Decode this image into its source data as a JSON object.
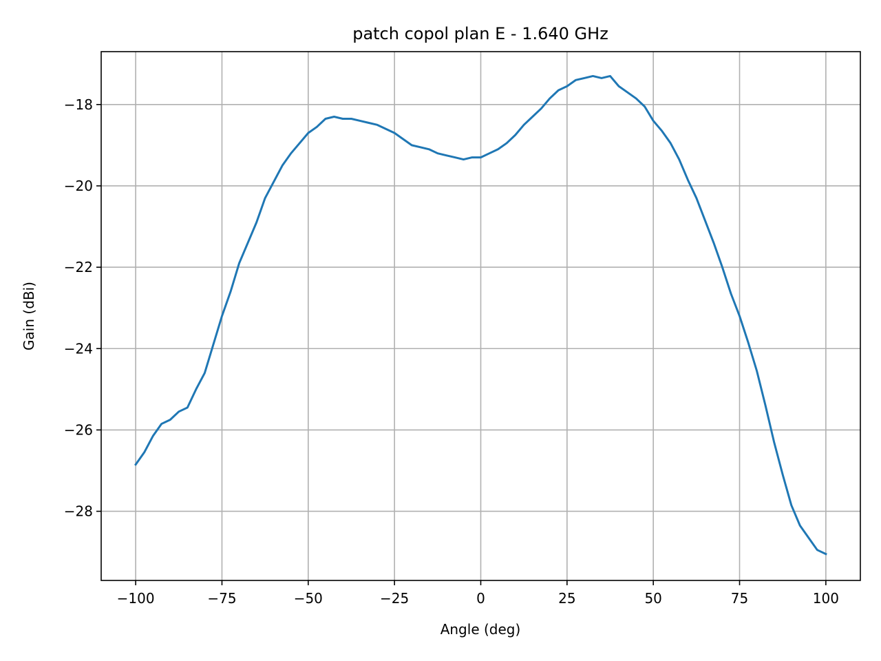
{
  "chart_data": {
    "type": "line",
    "title": "patch copol plan E - 1.640 GHz",
    "xlabel": "Angle (deg)",
    "ylabel": "Gain (dBi)",
    "xlim": [
      -110,
      110
    ],
    "ylim": [
      -29.7,
      -16.7
    ],
    "xticks": [
      -100,
      -75,
      -50,
      -25,
      0,
      25,
      50,
      75,
      100
    ],
    "xtick_labels": [
      "−100",
      "−75",
      "−50",
      "−25",
      "0",
      "25",
      "50",
      "75",
      "100"
    ],
    "yticks": [
      -28,
      -26,
      -24,
      -22,
      -20,
      -18
    ],
    "ytick_labels": [
      "−28",
      "−26",
      "−24",
      "−22",
      "−20",
      "−18"
    ],
    "grid": true,
    "line_color": "#1f77b4",
    "series": [
      {
        "x": [
          -100,
          -97.5,
          -95,
          -92.5,
          -90,
          -87.5,
          -85,
          -82.5,
          -80,
          -77.5,
          -75,
          -72.5,
          -70,
          -67.5,
          -65,
          -62.5,
          -60,
          -57.5,
          -55,
          -52.5,
          -50,
          -47.5,
          -45,
          -42.5,
          -40,
          -37.5,
          -35,
          -32.5,
          -30,
          -27.5,
          -25,
          -22.5,
          -20,
          -17.5,
          -15,
          -12.5,
          -10,
          -7.5,
          -5,
          -2.5,
          0,
          2.5,
          5,
          7.5,
          10,
          12.5,
          15,
          17.5,
          20,
          22.5,
          25,
          27.5,
          30,
          32.5,
          35,
          37.5,
          40,
          42.5,
          45,
          47.5,
          50,
          52.5,
          55,
          57.5,
          60,
          62.5,
          65,
          67.5,
          70,
          72.5,
          75,
          77.5,
          80,
          82.5,
          85,
          87.5,
          90,
          92.5,
          95,
          97.5,
          100
        ],
        "values": [
          -26.85,
          -26.55,
          -26.15,
          -25.85,
          -25.75,
          -25.55,
          -25.45,
          -25.0,
          -24.6,
          -23.9,
          -23.2,
          -22.6,
          -21.9,
          -21.4,
          -20.9,
          -20.3,
          -19.9,
          -19.5,
          -19.2,
          -18.95,
          -18.7,
          -18.55,
          -18.35,
          -18.3,
          -18.35,
          -18.35,
          -18.4,
          -18.45,
          -18.5,
          -18.6,
          -18.7,
          -18.85,
          -19.0,
          -19.05,
          -19.1,
          -19.2,
          -19.25,
          -19.3,
          -19.35,
          -19.3,
          -19.3,
          -19.2,
          -19.1,
          -18.95,
          -18.75,
          -18.5,
          -18.3,
          -18.1,
          -17.85,
          -17.65,
          -17.55,
          -17.4,
          -17.35,
          -17.3,
          -17.35,
          -17.3,
          -17.55,
          -17.7,
          -17.85,
          -18.05,
          -18.4,
          -18.65,
          -18.95,
          -19.35,
          -19.85,
          -20.3,
          -20.85,
          -21.4,
          -22.0,
          -22.65,
          -23.2,
          -23.85,
          -24.55,
          -25.4,
          -26.3,
          -27.1,
          -27.85,
          -28.35,
          -28.65,
          -28.95,
          -29.05
        ]
      }
    ]
  }
}
